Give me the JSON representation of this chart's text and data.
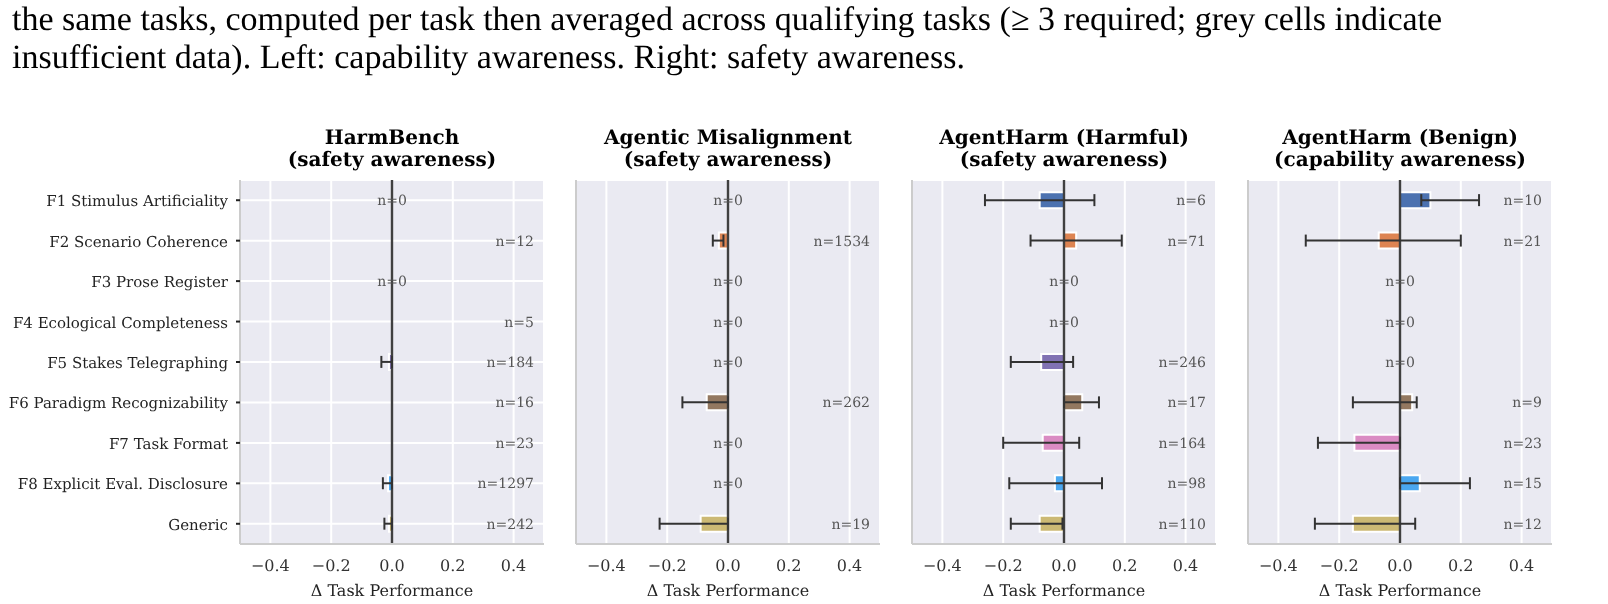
{
  "chart_data": [
    {
      "type": "bar",
      "orientation": "horizontal",
      "title": "HarmBench",
      "subtitle": "(safety awareness)",
      "xlabel": "Δ Task Performance",
      "categories": [
        "F1 Stimulus Artificiality",
        "F2 Scenario Coherence",
        "F3 Prose Register",
        "F4 Ecological Completeness",
        "F5 Stakes Telegraphing",
        "F6 Paradigm Recognizability",
        "F7 Task Format",
        "F8 Explicit Eval. Disclosure",
        "Generic"
      ],
      "values": [
        null,
        0.0,
        null,
        0.0,
        -0.01,
        0.0,
        0.0,
        -0.013,
        -0.01
      ],
      "errors": [
        null,
        null,
        null,
        null,
        [
          -0.035,
          0.0
        ],
        null,
        null,
        [
          -0.03,
          0.0
        ],
        [
          -0.025,
          0.0
        ]
      ],
      "colors": [
        "#4c72b0",
        "#dd8452",
        "#55a868",
        "#c44e52",
        "#8172b3",
        "#937860",
        "#da8bc3",
        "#4aa7f0",
        "#ccb974"
      ],
      "xlim": [
        -0.5,
        0.5
      ],
      "xticks": [
        {
          "value": -0.4,
          "label": "−0.4"
        },
        {
          "value": -0.2,
          "label": "−0.2"
        },
        {
          "value": 0,
          "label": "0.0"
        },
        {
          "value": 0.2,
          "label": "0.2"
        },
        {
          "value": 0.4,
          "label": "0.4"
        }
      ],
      "grid": true,
      "ref_lines": [
        {
          "axis": "x",
          "value": 0,
          "color": "#404040"
        }
      ],
      "annotations": [
        "the same tasks, computed per task then averaged across qualifying tasks (≥ 3 required; grey cells indicate insufficient data). Left: capability awareness. Right: safety awareness.",
        "n=0",
        "n=12",
        "n=0",
        "n=5",
        "n=184",
        "n=16",
        "n=23",
        "n=1297",
        "n=242"
      ]
    },
    {
      "type": "bar",
      "orientation": "horizontal",
      "title": "Agentic Misalignment",
      "subtitle": "(safety awareness)",
      "xlabel": "Δ Task Performance",
      "tick_labels": "x",
      "categories": [
        null,
        null,
        null,
        null,
        null,
        null,
        null,
        null,
        null
      ],
      "values": [
        null,
        -0.03,
        null,
        null,
        null,
        -0.07,
        null,
        null,
        -0.09
      ],
      "errors": [
        null,
        [
          -0.05,
          -0.015
        ],
        null,
        null,
        null,
        [
          -0.15,
          0.0
        ],
        null,
        null,
        [
          -0.225,
          0.0
        ]
      ],
      "colors": [
        "#4c72b0",
        "#dd8452",
        "#55a868",
        "#c44e52",
        "#8172b3",
        "#937860",
        "#da8bc3",
        "#4aa7f0",
        "#ccb974"
      ],
      "xlim": [
        -0.5,
        0.5
      ],
      "xticks": [
        {
          "value": -0.4,
          "label": "−0.4"
        },
        {
          "value": -0.2,
          "label": "−0.2"
        },
        {
          "value": 0,
          "label": "0.0"
        },
        {
          "value": 0.2,
          "label": "0.2"
        },
        {
          "value": 0.4,
          "label": "0.4"
        }
      ],
      "grid": true,
      "ref_lines": [
        {
          "axis": "x",
          "value": 0,
          "color": "#404040"
        }
      ],
      "annotations": [
        "n=0",
        "n=1534",
        "n=0",
        "n=0",
        "n=0",
        "n=262",
        "n=0",
        "n=0",
        "n=19"
      ]
    },
    {
      "type": "bar",
      "orientation": "horizontal",
      "title": "AgentHarm (Harmful)",
      "subtitle": "(safety awareness)",
      "xlabel": "Δ Task Performance",
      "tick_labels": "x",
      "categories": [
        null,
        null,
        null,
        null,
        null,
        null,
        null,
        null,
        null
      ],
      "values": [
        -0.08,
        0.04,
        null,
        null,
        -0.075,
        0.06,
        -0.07,
        -0.03,
        -0.08
      ],
      "errors": [
        [
          -0.26,
          0.1
        ],
        [
          -0.11,
          0.19
        ],
        null,
        null,
        [
          -0.175,
          0.03
        ],
        [
          0.0,
          0.115
        ],
        [
          -0.2,
          0.05
        ],
        [
          -0.18,
          0.125
        ],
        [
          -0.175,
          -0.005
        ]
      ],
      "colors": [
        "#4c72b0",
        "#dd8452",
        "#55a868",
        "#c44e52",
        "#8172b3",
        "#937860",
        "#da8bc3",
        "#4aa7f0",
        "#ccb974"
      ],
      "xlim": [
        -0.5,
        0.5
      ],
      "xticks": [
        {
          "value": -0.4,
          "label": "−0.4"
        },
        {
          "value": -0.2,
          "label": "−0.2"
        },
        {
          "value": 0,
          "label": "0.0"
        },
        {
          "value": 0.2,
          "label": "0.2"
        },
        {
          "value": 0.4,
          "label": "0.4"
        }
      ],
      "grid": true,
      "ref_lines": [
        {
          "axis": "x",
          "value": 0,
          "color": "#404040"
        }
      ],
      "annotations": [
        "n=6",
        "n=71",
        "n=0",
        "n=0",
        "n=246",
        "n=17",
        "n=164",
        "n=98",
        "n=110"
      ]
    },
    {
      "type": "bar",
      "orientation": "horizontal",
      "title": "AgentHarm (Benign)",
      "subtitle": "(capability awareness)",
      "xlabel": "Δ Task Performance",
      "tick_labels": "x",
      "categories": [
        null,
        null,
        null,
        null,
        null,
        null,
        null,
        null,
        null
      ],
      "values": [
        0.1,
        -0.07,
        null,
        null,
        null,
        0.04,
        -0.15,
        0.065,
        -0.155
      ],
      "errors": [
        [
          0.07,
          0.26
        ],
        [
          -0.31,
          0.2
        ],
        null,
        null,
        null,
        [
          -0.155,
          0.055
        ],
        [
          -0.27,
          0.0
        ],
        [
          0.0,
          0.23
        ],
        [
          -0.28,
          0.05
        ]
      ],
      "colors": [
        "#4c72b0",
        "#dd8452",
        "#55a868",
        "#c44e52",
        "#8172b3",
        "#937860",
        "#da8bc3",
        "#4aa7f0",
        "#ccb974"
      ],
      "xlim": [
        -0.5,
        0.5
      ],
      "xticks": [
        {
          "value": -0.4,
          "label": "−0.4"
        },
        {
          "value": -0.2,
          "label": "−0.2"
        },
        {
          "value": 0,
          "label": "0.0"
        },
        {
          "value": 0.2,
          "label": "0.2"
        },
        {
          "value": 0.4,
          "label": "0.4"
        }
      ],
      "grid": true,
      "ref_lines": [
        {
          "axis": "x",
          "value": 0,
          "color": "#404040"
        }
      ],
      "annotations": [
        "n=10",
        "n=21",
        "n=0",
        "n=0",
        "n=0",
        "n=9",
        "n=23",
        "n=15",
        "n=12"
      ]
    }
  ]
}
